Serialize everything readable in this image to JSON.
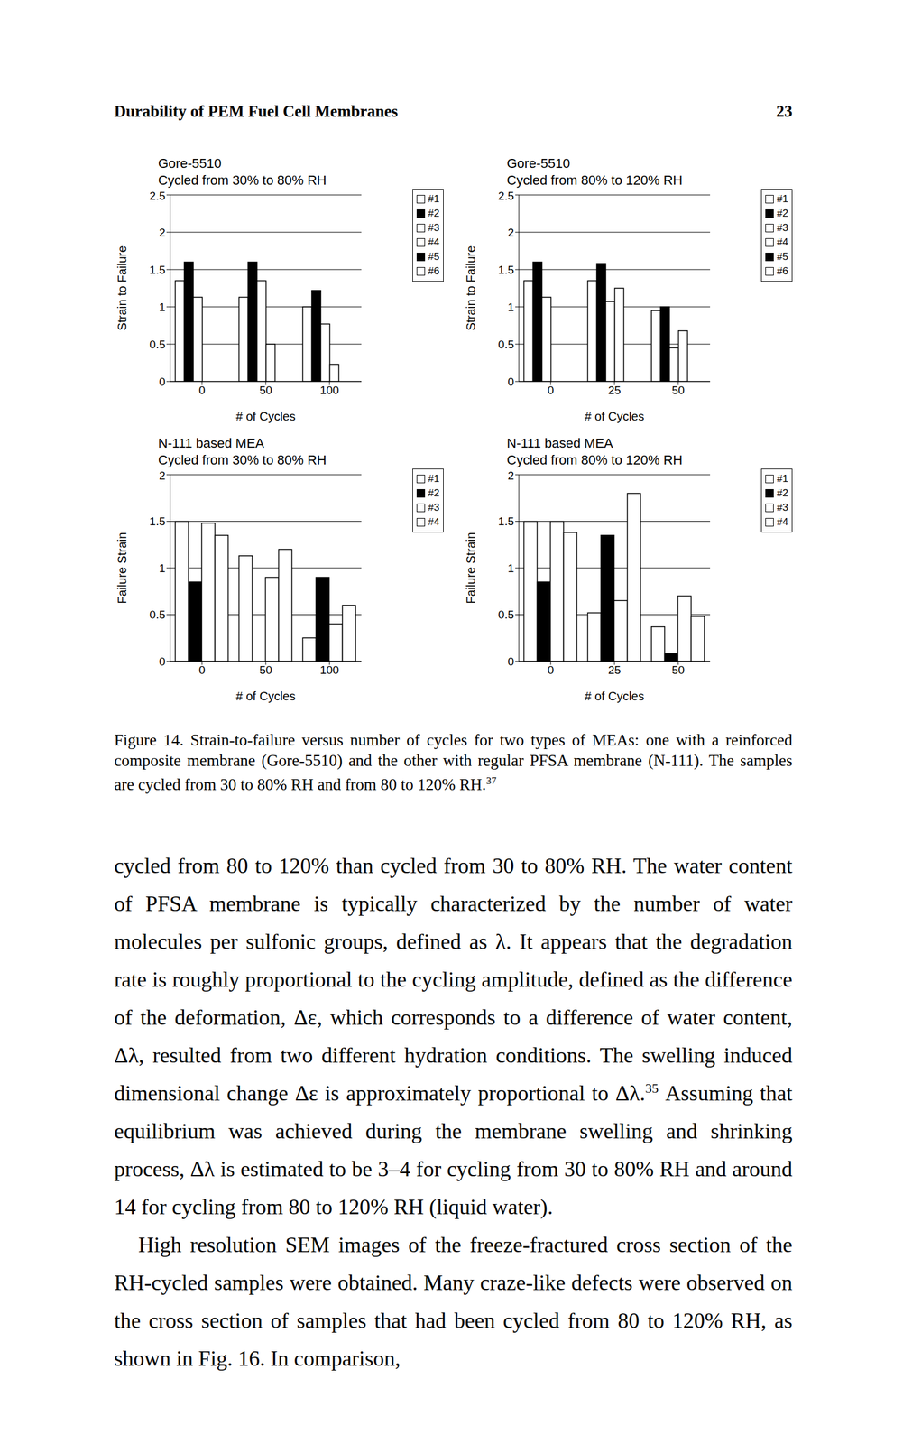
{
  "header": {
    "title": "Durability of PEM Fuel Cell Membranes",
    "page": "23"
  },
  "chart_data": [
    {
      "type": "bar",
      "title": "Gore-5510",
      "subtitle": "Cycled from 30% to 80% RH",
      "y_label": "Strain to Failure",
      "x_label": "# of Cycles",
      "categories": [
        "0",
        "50",
        "100"
      ],
      "series": [
        {
          "name": "#1",
          "color": "#ffffff",
          "values": [
            1.35,
            1.13,
            1.0
          ]
        },
        {
          "name": "#2",
          "color": "#000000",
          "values": [
            1.6,
            1.6,
            1.22
          ]
        },
        {
          "name": "#3",
          "color": "#ffffff",
          "values": [
            1.13,
            1.35,
            0.77
          ]
        },
        {
          "name": "#4",
          "color": "#ffffff",
          "values": [
            null,
            0.5,
            0.23
          ]
        },
        {
          "name": "#5",
          "color": "#000000",
          "values": [
            null,
            null,
            null
          ]
        },
        {
          "name": "#6",
          "color": "#ffffff",
          "values": [
            null,
            null,
            null
          ]
        }
      ],
      "ylim": [
        0,
        2.5
      ],
      "yticks": [
        0,
        0.5,
        1,
        1.5,
        2,
        2.5
      ],
      "grid": true,
      "legend": "right"
    },
    {
      "type": "bar",
      "title": "Gore-5510",
      "subtitle": "Cycled from 80% to 120% RH",
      "y_label": "Strain to Failure",
      "x_label": "# of Cycles",
      "categories": [
        "0",
        "25",
        "50"
      ],
      "series": [
        {
          "name": "#1",
          "color": "#ffffff",
          "values": [
            1.35,
            1.35,
            0.95
          ]
        },
        {
          "name": "#2",
          "color": "#000000",
          "values": [
            1.6,
            1.58,
            1.0
          ]
        },
        {
          "name": "#3",
          "color": "#ffffff",
          "values": [
            1.13,
            1.07,
            0.45
          ]
        },
        {
          "name": "#4",
          "color": "#ffffff",
          "values": [
            null,
            1.25,
            0.68
          ]
        },
        {
          "name": "#5",
          "color": "#000000",
          "values": [
            null,
            null,
            null
          ]
        },
        {
          "name": "#6",
          "color": "#ffffff",
          "values": [
            null,
            null,
            null
          ]
        }
      ],
      "ylim": [
        0,
        2.5
      ],
      "yticks": [
        0,
        0.5,
        1,
        1.5,
        2,
        2.5
      ],
      "grid": true,
      "legend": "right"
    },
    {
      "type": "bar",
      "title": "N-111 based MEA",
      "subtitle": "Cycled from 30% to 80% RH",
      "y_label": "Failure Strain",
      "x_label": "# of Cycles",
      "categories": [
        "0",
        "50",
        "100"
      ],
      "series": [
        {
          "name": "#1",
          "color": "#ffffff",
          "values": [
            1.5,
            1.13,
            0.25
          ]
        },
        {
          "name": "#2",
          "color": "#000000",
          "values": [
            0.85,
            null,
            0.9
          ]
        },
        {
          "name": "#3",
          "color": "#ffffff",
          "values": [
            1.48,
            0.9,
            0.4
          ]
        },
        {
          "name": "#4",
          "color": "#ffffff",
          "values": [
            1.35,
            1.2,
            0.6
          ]
        }
      ],
      "ylim": [
        0,
        2
      ],
      "yticks": [
        0,
        0.5,
        1,
        1.5,
        2
      ],
      "grid": true,
      "legend": "right"
    },
    {
      "type": "bar",
      "title": "N-111 based MEA",
      "subtitle": "Cycled from 80% to 120% RH",
      "y_label": "Failure Strain",
      "x_label": "# of Cycles",
      "categories": [
        "0",
        "25",
        "50"
      ],
      "series": [
        {
          "name": "#1",
          "color": "#ffffff",
          "values": [
            1.5,
            0.52,
            0.37
          ]
        },
        {
          "name": "#2",
          "color": "#000000",
          "values": [
            0.85,
            1.35,
            0.08
          ]
        },
        {
          "name": "#3",
          "color": "#ffffff",
          "values": [
            1.5,
            0.65,
            0.7
          ]
        },
        {
          "name": "#4",
          "color": "#ffffff",
          "values": [
            1.38,
            1.8,
            0.48
          ]
        }
      ],
      "ylim": [
        0,
        2
      ],
      "yticks": [
        0,
        0.5,
        1,
        1.5,
        2
      ],
      "grid": true,
      "legend": "right"
    }
  ],
  "caption": {
    "text": "Figure 14. Strain-to-failure versus number of cycles for two types of MEAs: one with a reinforced composite membrane (Gore-5510) and the other with regular PFSA membrane (N-111). The samples are cycled from 30 to 80% RH and from 80 to 120% RH.",
    "ref": "37"
  },
  "body": [
    [
      {
        "text": "cycled from 80 to 120% than cycled from 30 to 80% RH. The water content of PFSA membrane is typically characterized by the number of water molecules per sulfonic groups, defined as λ. It appears that the degradation rate is roughly proportional to the cycling amplitude, defined as the difference of the deformation, Δε, which corresponds to a difference of water content, Δλ, resulted from two different hydration conditions. The swelling induced dimensional change Δε is approximately proportional to Δλ."
      },
      {
        "sup": "35"
      },
      {
        "text": " Assuming that equilibrium was achieved during the membrane swelling and shrinking process, Δλ is estimated to be 3–4 for cycling from 30 to 80% RH and around 14 for cycling from 80 to 120% RH (liquid water)."
      }
    ],
    [
      {
        "text": "High resolution SEM images of the freeze-fractured cross section of the RH-cycled samples were obtained. Many craze-like defects were observed on the cross section of samples that had been cycled from 80 to 120% RH, as shown in Fig. 16. In comparison,"
      }
    ]
  ]
}
